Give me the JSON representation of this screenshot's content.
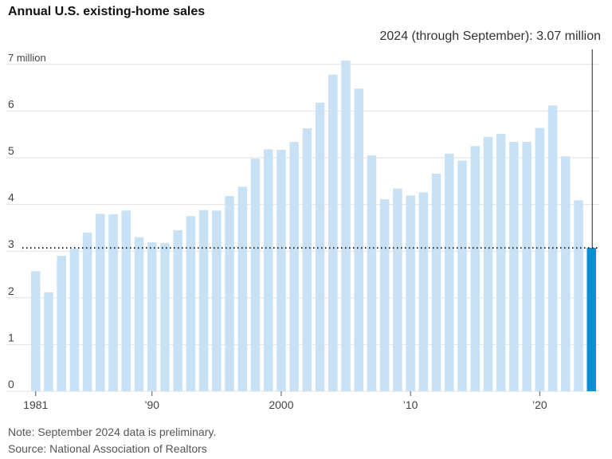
{
  "title": "Annual U.S. existing-home sales",
  "note": "Note: September 2024 data is preliminary.",
  "source": "Source: National Association of Realtors",
  "annotation": "2024 (through September): 3.07 million",
  "colors": {
    "bar": "#c8e1f5",
    "highlight": "#0a8fd6",
    "grid": "#e2e2e2",
    "annotation_line": "#222222"
  },
  "chart_data": {
    "type": "bar",
    "title": "Annual U.S. existing-home sales",
    "x": [
      1981,
      1982,
      1983,
      1984,
      1985,
      1986,
      1987,
      1988,
      1989,
      1990,
      1991,
      1992,
      1993,
      1994,
      1995,
      1996,
      1997,
      1998,
      1999,
      2000,
      2001,
      2002,
      2003,
      2004,
      2005,
      2006,
      2007,
      2008,
      2009,
      2010,
      2011,
      2012,
      2013,
      2014,
      2015,
      2016,
      2017,
      2018,
      2019,
      2020,
      2021,
      2022,
      2023,
      2024
    ],
    "values": [
      2.57,
      2.12,
      2.9,
      3.05,
      3.4,
      3.8,
      3.79,
      3.87,
      3.3,
      3.19,
      3.17,
      3.45,
      3.75,
      3.88,
      3.87,
      4.18,
      4.38,
      4.98,
      5.18,
      5.17,
      5.34,
      5.63,
      6.18,
      6.78,
      7.08,
      6.48,
      5.05,
      4.11,
      4.34,
      4.19,
      4.26,
      4.66,
      5.09,
      4.94,
      5.25,
      5.45,
      5.51,
      5.34,
      5.34,
      5.64,
      6.12,
      5.03,
      4.09,
      3.07
    ],
    "highlight_year": 2024,
    "reference_value": 3.07,
    "ylim": [
      0,
      7
    ],
    "yticks": [
      0,
      1,
      2,
      3,
      4,
      5,
      6,
      7
    ],
    "ytick_labels": [
      "0",
      "1",
      "2",
      "3",
      "4",
      "5",
      "6",
      "7 million"
    ],
    "xtick_years": [
      1981,
      1990,
      2000,
      2010,
      2020
    ],
    "xtick_labels": [
      "1981",
      "’90",
      "2000",
      "’10",
      "’20"
    ],
    "grid": true
  }
}
